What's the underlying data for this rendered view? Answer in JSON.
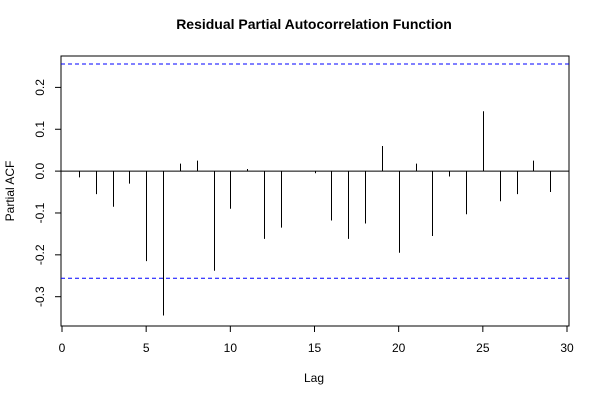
{
  "chart_data": {
    "type": "bar",
    "title": "Residual Partial Autocorrelation Function",
    "xlabel": "Lag",
    "ylabel": "Partial ACF",
    "xlim": [
      0,
      30
    ],
    "ylim": [
      -0.37,
      0.275
    ],
    "x_ticks": [
      0,
      5,
      10,
      15,
      20,
      25,
      30
    ],
    "y_ticks": [
      -0.3,
      -0.2,
      -0.1,
      0.0,
      0.1,
      0.2
    ],
    "y_tick_labels": [
      "-0.3",
      "-0.2",
      "-0.1",
      "0.0",
      "0.1",
      "0.2"
    ],
    "confidence_limit": 0.256,
    "confidence_line_color": "#0000ff",
    "grid": false,
    "lags": [
      1,
      2,
      3,
      4,
      5,
      6,
      7,
      8,
      9,
      10,
      11,
      12,
      13,
      14,
      15,
      16,
      17,
      18,
      19,
      20,
      21,
      22,
      23,
      24,
      25,
      26,
      27,
      28,
      29
    ],
    "values": [
      -0.015,
      -0.055,
      -0.085,
      -0.03,
      -0.215,
      -0.345,
      0.018,
      0.025,
      -0.238,
      -0.09,
      0.005,
      -0.162,
      -0.135,
      0.0,
      -0.005,
      -0.118,
      -0.162,
      -0.125,
      0.06,
      -0.195,
      0.018,
      -0.155,
      -0.013,
      -0.103,
      0.143,
      -0.072,
      -0.055,
      0.025,
      -0.05
    ]
  }
}
